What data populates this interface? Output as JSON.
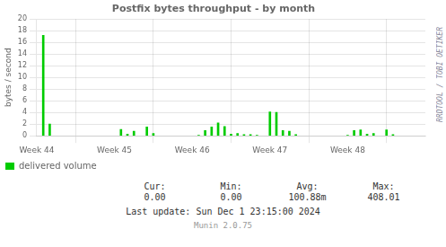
{
  "chart_data": {
    "type": "bar",
    "title": "Postfix bytes throughput - by month",
    "ylabel": "bytes / second",
    "x": [
      14,
      28,
      182,
      196,
      210,
      238,
      252,
      350,
      364,
      378,
      392,
      406,
      420,
      434,
      448,
      462,
      476,
      504,
      518,
      532,
      546,
      560,
      672,
      686,
      700,
      714,
      728,
      756,
      770
    ],
    "series": [
      {
        "name": "delivered volume",
        "color": "#00cc00",
        "values": [
          17.2,
          2.0,
          1.1,
          0.3,
          0.8,
          1.5,
          0.4,
          0.1,
          0.9,
          1.5,
          2.2,
          1.6,
          0.3,
          0.4,
          0.2,
          0.2,
          0.1,
          4.1,
          4.0,
          0.9,
          0.8,
          0.2,
          0.1,
          0.9,
          1.0,
          0.3,
          0.4,
          1.0,
          0.2
        ]
      }
    ],
    "xlim": [
      0,
      840
    ],
    "xticks": [
      {
        "value": 0,
        "label": "Week 44"
      },
      {
        "value": 168,
        "label": "Week 45"
      },
      {
        "value": 336,
        "label": "Week 46"
      },
      {
        "value": 504,
        "label": "Week 47"
      },
      {
        "value": 672,
        "label": "Week 48"
      }
    ],
    "ylim": [
      0,
      20
    ],
    "yticks": [
      0,
      2,
      4,
      6,
      8,
      10,
      12,
      14,
      16,
      18,
      20
    ],
    "grid": true,
    "legend": "lower left",
    "stats": [
      {
        "name": "Cur:",
        "text": "0.00"
      },
      {
        "name": "Min:",
        "text": "0.00"
      },
      {
        "name": "Avg:",
        "text": "100.88m"
      },
      {
        "name": "Max:",
        "text": "408.01"
      }
    ],
    "annotations": [
      "Last update: Sun Dec  1 23:15:00 2024",
      "Munin 2.0.75",
      "RRDTOOL / TOBI OETIKER"
    ]
  }
}
